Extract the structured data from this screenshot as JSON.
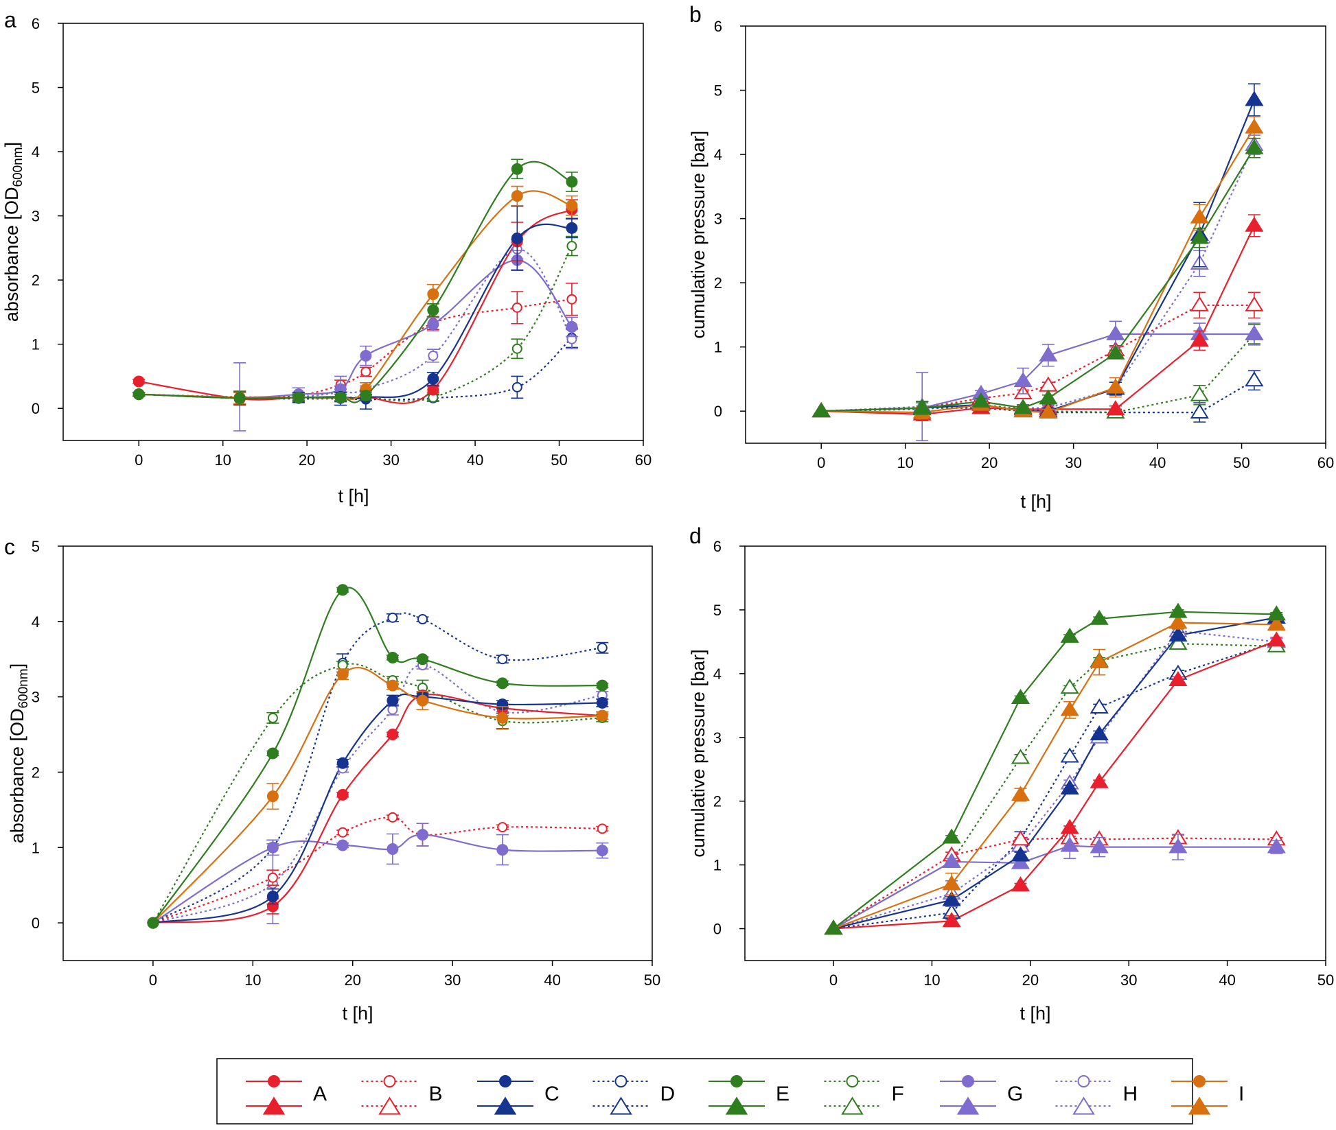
{
  "colors": {
    "A": "#e8202d",
    "B": "#e8202d",
    "C": "#15348f",
    "D": "#15348f",
    "E": "#2e7d1e",
    "F": "#2e7d1e",
    "G": "#7e6ccf",
    "H": "#7e6ccf",
    "I": "#d8700f",
    "axis": "#000000"
  },
  "legend": {
    "items": [
      {
        "key": "A",
        "label": "A",
        "style": "solid",
        "top": "filled-circle",
        "bottom": "filled-triangle"
      },
      {
        "key": "B",
        "label": "B",
        "style": "dotted",
        "top": "open-circle",
        "bottom": "open-triangle"
      },
      {
        "key": "C",
        "label": "C",
        "style": "solid",
        "top": "filled-circle",
        "bottom": "filled-triangle"
      },
      {
        "key": "D",
        "label": "D",
        "style": "dotted",
        "top": "open-circle",
        "bottom": "open-triangle"
      },
      {
        "key": "E",
        "label": "E",
        "style": "solid",
        "top": "filled-circle",
        "bottom": "filled-triangle"
      },
      {
        "key": "F",
        "label": "F",
        "style": "dotted",
        "top": "open-circle",
        "bottom": "open-triangle"
      },
      {
        "key": "G",
        "label": "G",
        "style": "solid",
        "top": "filled-circle",
        "bottom": "filled-triangle"
      },
      {
        "key": "H",
        "label": "H",
        "style": "dotted",
        "top": "open-circle",
        "bottom": "open-triangle"
      },
      {
        "key": "I",
        "label": "I",
        "style": "solid",
        "top": "filled-circle",
        "bottom": "filled-triangle"
      }
    ]
  },
  "chart_data": [
    {
      "panel": "a",
      "type": "line",
      "marker": "circle",
      "curve": "smooth",
      "xlabel": "t [h]",
      "ylabel_main": "absorbance [OD",
      "ylabel_sub": "600nm",
      "ylabel_end": "]",
      "xlim": [
        -9,
        60
      ],
      "ylim": [
        -0.5,
        6
      ],
      "xticks": [
        0,
        10,
        20,
        30,
        40,
        50,
        60
      ],
      "yticks": [
        0,
        1,
        2,
        3,
        4,
        5,
        6
      ],
      "x": [
        0,
        12,
        19,
        24,
        27,
        35,
        45,
        51.5
      ],
      "series": [
        {
          "name": "A",
          "style": "solid",
          "values": [
            0.42,
            0.15,
            0.17,
            0.17,
            0.17,
            0.29,
            2.6,
            3.1
          ],
          "err": [
            0.03,
            0.1,
            0.05,
            0.05,
            0.05,
            0.05,
            0.3,
            0.15
          ]
        },
        {
          "name": "B",
          "style": "dotted",
          "values": [
            0.22,
            0.17,
            0.2,
            0.37,
            0.57,
            1.33,
            1.57,
            1.7
          ],
          "err": [
            0.03,
            0.1,
            0.05,
            0.07,
            0.07,
            0.1,
            0.25,
            0.25
          ]
        },
        {
          "name": "C",
          "style": "solid",
          "values": [
            0.22,
            0.16,
            0.17,
            0.18,
            0.17,
            0.46,
            2.65,
            2.81
          ],
          "err": [
            0.03,
            0.1,
            0.08,
            0.07,
            0.05,
            0.1,
            0.5,
            0.15
          ]
        },
        {
          "name": "D",
          "style": "dotted",
          "values": [
            0.22,
            0.16,
            0.15,
            0.15,
            0.14,
            0.16,
            0.33,
            1.1
          ],
          "err": [
            0.03,
            0.1,
            0.05,
            0.1,
            0.15,
            0.05,
            0.17,
            0.15
          ]
        },
        {
          "name": "E",
          "style": "solid",
          "values": [
            0.22,
            0.16,
            0.17,
            0.17,
            0.2,
            1.53,
            3.73,
            3.53
          ],
          "err": [
            0.03,
            0.1,
            0.05,
            0.05,
            0.07,
            0.1,
            0.15,
            0.15
          ]
        },
        {
          "name": "F",
          "style": "dotted",
          "values": [
            0.22,
            0.16,
            0.17,
            0.17,
            0.17,
            0.17,
            0.93,
            2.53
          ],
          "err": [
            0.03,
            0.1,
            0.05,
            0.05,
            0.05,
            0.05,
            0.15,
            0.15
          ]
        },
        {
          "name": "G",
          "style": "solid",
          "values": [
            0.22,
            0.17,
            0.22,
            0.3,
            0.82,
            1.31,
            2.31,
            1.27
          ],
          "err": [
            0.03,
            0.1,
            0.1,
            0.2,
            0.15,
            0.1,
            0.15,
            0.15
          ]
        },
        {
          "name": "H",
          "style": "dotted",
          "values": [
            0.22,
            0.18,
            0.18,
            0.25,
            0.3,
            0.82,
            2.48,
            1.08
          ],
          "err": [
            0.03,
            0.53,
            0.05,
            0.1,
            0.05,
            0.1,
            0.15,
            0.15
          ]
        },
        {
          "name": "I",
          "style": "solid",
          "values": [
            0.22,
            0.17,
            0.17,
            0.17,
            0.3,
            1.78,
            3.31,
            3.16
          ],
          "err": [
            0.03,
            0.1,
            0.05,
            0.05,
            0.1,
            0.15,
            0.15,
            0.15
          ]
        }
      ]
    },
    {
      "panel": "b",
      "type": "line",
      "marker": "triangle",
      "curve": "linear",
      "xlabel": "t [h]",
      "ylabel_main": "cumulative pressure [bar]",
      "ylabel_sub": "",
      "ylabel_end": "",
      "xlim": [
        -9,
        60
      ],
      "ylim": [
        -0.5,
        6
      ],
      "xticks": [
        0,
        10,
        20,
        30,
        40,
        50,
        60
      ],
      "yticks": [
        0,
        1,
        2,
        3,
        4,
        5,
        6
      ],
      "x": [
        0,
        12,
        19,
        24,
        27,
        35,
        45,
        51.5
      ],
      "series": [
        {
          "name": "A",
          "style": "solid",
          "values": [
            0,
            -0.05,
            0.05,
            0.03,
            0.03,
            0.03,
            1.1,
            2.89
          ],
          "err": [
            0,
            0.1,
            0.05,
            0.05,
            0.05,
            0.05,
            0.15,
            0.17
          ]
        },
        {
          "name": "B",
          "style": "dotted",
          "values": [
            0,
            0.05,
            0.2,
            0.28,
            0.4,
            0.95,
            1.65,
            1.65
          ],
          "err": [
            0,
            0.1,
            0.05,
            0.05,
            0.05,
            0.07,
            0.2,
            0.2
          ]
        },
        {
          "name": "C",
          "style": "solid",
          "values": [
            0,
            0.05,
            0.1,
            0.0,
            0.0,
            0.35,
            2.75,
            4.85
          ],
          "err": [
            0,
            0.1,
            0.05,
            0.05,
            0.05,
            0.1,
            0.5,
            0.25
          ]
        },
        {
          "name": "D",
          "style": "dotted",
          "values": [
            0,
            0.05,
            0.05,
            0.0,
            -0.02,
            -0.02,
            -0.02,
            0.48
          ],
          "err": [
            0,
            0.1,
            0.05,
            0.05,
            0.05,
            0.05,
            0.15,
            0.15
          ]
        },
        {
          "name": "E",
          "style": "solid",
          "values": [
            0,
            0.05,
            0.15,
            0.05,
            0.2,
            0.9,
            2.7,
            4.1
          ],
          "err": [
            0,
            0.1,
            0.05,
            0.05,
            0.05,
            0.05,
            0.15,
            0.15
          ]
        },
        {
          "name": "F",
          "style": "dotted",
          "values": [
            0,
            0.03,
            0.1,
            0.03,
            0.0,
            -0.02,
            0.25,
            1.2
          ],
          "err": [
            0,
            0.1,
            0.05,
            0.05,
            0.05,
            0.05,
            0.15,
            0.15
          ]
        },
        {
          "name": "G",
          "style": "solid",
          "values": [
            0,
            0.05,
            0.27,
            0.47,
            0.87,
            1.2,
            1.2,
            1.2
          ],
          "err": [
            0,
            0.1,
            0.05,
            0.2,
            0.17,
            0.2,
            0.17,
            0.17
          ]
        },
        {
          "name": "H",
          "style": "dotted",
          "values": [
            0,
            0.07,
            0.15,
            0.05,
            0.05,
            0.35,
            2.3,
            4.15
          ],
          "err": [
            0,
            0.53,
            0.05,
            0.05,
            0.05,
            0.1,
            0.2,
            0.15
          ]
        },
        {
          "name": "I",
          "style": "solid",
          "values": [
            0,
            -0.02,
            0.1,
            0.0,
            -0.02,
            0.37,
            3.02,
            4.42
          ],
          "err": [
            0,
            0.1,
            0.05,
            0.05,
            0.05,
            0.15,
            0.2,
            0.17
          ]
        }
      ]
    },
    {
      "panel": "c",
      "type": "line",
      "marker": "circle",
      "curve": "smooth",
      "xlabel": "t [h]",
      "ylabel_main": "absorbance [OD",
      "ylabel_sub": "600nm",
      "ylabel_end": "]",
      "xlim": [
        -9,
        50
      ],
      "ylim": [
        -0.5,
        5
      ],
      "xticks": [
        0,
        10,
        20,
        30,
        40,
        50
      ],
      "yticks": [
        0,
        1,
        2,
        3,
        4,
        5
      ],
      "x": [
        0,
        12,
        19,
        24,
        27,
        35,
        45
      ],
      "series": [
        {
          "name": "A",
          "style": "solid",
          "values": [
            0,
            0.22,
            1.7,
            2.5,
            3.02,
            2.85,
            2.75
          ],
          "err": [
            0,
            0.1,
            0.03,
            0.03,
            0.05,
            0.05,
            0.05
          ]
        },
        {
          "name": "B",
          "style": "dotted",
          "values": [
            0,
            0.6,
            1.2,
            1.4,
            1.17,
            1.27,
            1.25
          ],
          "err": [
            0,
            0.1,
            0.03,
            0.03,
            0.15,
            0.03,
            0.03
          ]
        },
        {
          "name": "C",
          "style": "solid",
          "values": [
            0,
            0.35,
            2.12,
            2.95,
            3.0,
            2.9,
            2.92
          ],
          "err": [
            0,
            0.1,
            0.05,
            0.07,
            0.05,
            0.05,
            0.05
          ]
        },
        {
          "name": "D",
          "style": "dotted",
          "values": [
            0,
            1.0,
            3.45,
            4.05,
            4.03,
            3.5,
            3.65
          ],
          "err": [
            0,
            0.1,
            0.12,
            0.05,
            0.03,
            0.05,
            0.07
          ]
        },
        {
          "name": "E",
          "style": "solid",
          "values": [
            0,
            2.25,
            4.42,
            3.52,
            3.5,
            3.18,
            3.15
          ],
          "err": [
            0,
            0.03,
            0.03,
            0.03,
            0.03,
            0.03,
            0.03
          ]
        },
        {
          "name": "F",
          "style": "dotted",
          "values": [
            0,
            2.72,
            3.42,
            3.22,
            3.12,
            2.68,
            2.72
          ],
          "err": [
            0,
            0.07,
            0.05,
            0.05,
            0.1,
            0.1,
            0.05
          ]
        },
        {
          "name": "G",
          "style": "solid",
          "values": [
            0,
            1.0,
            1.03,
            0.98,
            1.17,
            0.97,
            0.96
          ],
          "err": [
            0,
            0.1,
            0.03,
            0.2,
            0.15,
            0.2,
            0.1
          ]
        },
        {
          "name": "H",
          "style": "dotted",
          "values": [
            0,
            0.52,
            2.05,
            2.83,
            3.42,
            2.8,
            3.02
          ],
          "err": [
            0,
            0.53,
            0.05,
            0.07,
            0.05,
            0.05,
            0.05
          ]
        },
        {
          "name": "I",
          "style": "solid",
          "values": [
            0,
            1.68,
            3.3,
            3.15,
            2.95,
            2.72,
            2.75
          ],
          "err": [
            0,
            0.17,
            0.07,
            0.05,
            0.12,
            0.15,
            0.05
          ]
        }
      ]
    },
    {
      "panel": "d",
      "type": "line",
      "marker": "triangle",
      "curve": "linear",
      "xlabel": "t [h]",
      "ylabel_main": "cumulative pressure [bar]",
      "ylabel_sub": "",
      "ylabel_end": "",
      "xlim": [
        -9,
        50
      ],
      "ylim": [
        -0.5,
        6
      ],
      "xticks": [
        0,
        10,
        20,
        30,
        40,
        50
      ],
      "yticks": [
        0,
        1,
        2,
        3,
        4,
        5,
        6
      ],
      "x": [
        0,
        12,
        19,
        24,
        27,
        35,
        45
      ],
      "series": [
        {
          "name": "A",
          "style": "solid",
          "values": [
            0,
            0.12,
            0.68,
            1.58,
            2.3,
            3.9,
            4.52
          ],
          "err": [
            0,
            0.08,
            0.03,
            0.03,
            0.03,
            0.05,
            0.05
          ]
        },
        {
          "name": "B",
          "style": "dotted",
          "values": [
            0,
            1.15,
            1.4,
            1.42,
            1.4,
            1.42,
            1.4
          ],
          "err": [
            0,
            0.05,
            0.03,
            0.03,
            0.03,
            0.05,
            0.03
          ]
        },
        {
          "name": "C",
          "style": "solid",
          "values": [
            0,
            0.45,
            1.15,
            2.2,
            3.05,
            4.6,
            4.88
          ],
          "err": [
            0,
            0.05,
            0.05,
            0.05,
            0.05,
            0.05,
            0.05
          ]
        },
        {
          "name": "D",
          "style": "dotted",
          "values": [
            0,
            0.25,
            1.4,
            2.7,
            3.47,
            4.0,
            4.5
          ],
          "err": [
            0,
            0.1,
            0.12,
            0.05,
            0.05,
            0.05,
            0.05
          ]
        },
        {
          "name": "E",
          "style": "solid",
          "values": [
            0,
            1.43,
            3.62,
            4.58,
            4.86,
            4.97,
            4.93
          ],
          "err": [
            0,
            0.03,
            0.03,
            0.03,
            0.03,
            0.03,
            0.03
          ]
        },
        {
          "name": "F",
          "style": "dotted",
          "values": [
            0,
            1.05,
            2.68,
            3.78,
            4.2,
            4.47,
            4.43
          ],
          "err": [
            0,
            0.05,
            0.05,
            0.03,
            0.05,
            0.05,
            0.05
          ]
        },
        {
          "name": "G",
          "style": "solid",
          "values": [
            0,
            1.05,
            1.03,
            1.3,
            1.28,
            1.28,
            1.28
          ],
          "err": [
            0,
            0.05,
            0.03,
            0.2,
            0.15,
            0.2,
            0.1
          ]
        },
        {
          "name": "H",
          "style": "dotted",
          "values": [
            0,
            0.55,
            1.3,
            2.28,
            3.0,
            4.67,
            4.5
          ],
          "err": [
            0,
            0.2,
            0.1,
            0.05,
            0.05,
            0.05,
            0.05
          ]
        },
        {
          "name": "I",
          "style": "solid",
          "values": [
            0,
            0.7,
            2.1,
            3.43,
            4.18,
            4.8,
            4.77
          ],
          "err": [
            0,
            0.17,
            0.1,
            0.13,
            0.2,
            0.1,
            0.07
          ]
        }
      ]
    }
  ]
}
